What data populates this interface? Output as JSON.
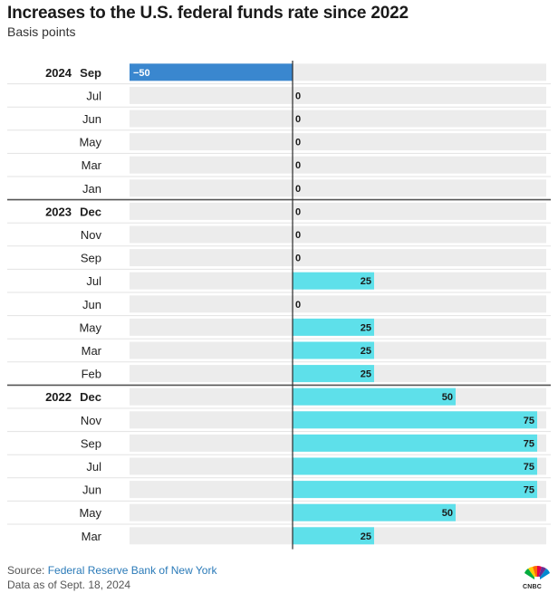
{
  "title": "Increases to the U.S. federal funds rate since 2022",
  "subtitle": "Basis points",
  "footer": {
    "source_label": "Source: ",
    "source_name": "Federal Reserve Bank of New York",
    "note": "Data as of Sept. 18, 2024"
  },
  "logo": {
    "name": "CNBC",
    "icon": "peacock-icon"
  },
  "colors": {
    "positive": "#5ee0ea",
    "negative": "#3a87cf",
    "track": "#ececec",
    "axis": "#2b2b2b",
    "separator": "#555555"
  },
  "chart_data": {
    "type": "bar",
    "orientation": "horizontal",
    "xlim": [
      -50,
      75
    ],
    "rows": [
      {
        "year": "2024",
        "month": "Sep",
        "value": -50,
        "label": "−50"
      },
      {
        "year": "",
        "month": "Jul",
        "value": 0,
        "label": "0"
      },
      {
        "year": "",
        "month": "Jun",
        "value": 0,
        "label": "0"
      },
      {
        "year": "",
        "month": "May",
        "value": 0,
        "label": "0"
      },
      {
        "year": "",
        "month": "Mar",
        "value": 0,
        "label": "0"
      },
      {
        "year": "",
        "month": "Jan",
        "value": 0,
        "label": "0"
      },
      {
        "year": "2023",
        "month": "Dec",
        "value": 0,
        "label": "0"
      },
      {
        "year": "",
        "month": "Nov",
        "value": 0,
        "label": "0"
      },
      {
        "year": "",
        "month": "Sep",
        "value": 0,
        "label": "0"
      },
      {
        "year": "",
        "month": "Jul",
        "value": 25,
        "label": "25"
      },
      {
        "year": "",
        "month": "Jun",
        "value": 0,
        "label": "0"
      },
      {
        "year": "",
        "month": "May",
        "value": 25,
        "label": "25"
      },
      {
        "year": "",
        "month": "Mar",
        "value": 25,
        "label": "25"
      },
      {
        "year": "",
        "month": "Feb",
        "value": 25,
        "label": "25"
      },
      {
        "year": "2022",
        "month": "Dec",
        "value": 50,
        "label": "50"
      },
      {
        "year": "",
        "month": "Nov",
        "value": 75,
        "label": "75"
      },
      {
        "year": "",
        "month": "Sep",
        "value": 75,
        "label": "75"
      },
      {
        "year": "",
        "month": "Jul",
        "value": 75,
        "label": "75"
      },
      {
        "year": "",
        "month": "Jun",
        "value": 75,
        "label": "75"
      },
      {
        "year": "",
        "month": "May",
        "value": 50,
        "label": "50"
      },
      {
        "year": "",
        "month": "Mar",
        "value": 25,
        "label": "25"
      }
    ]
  }
}
